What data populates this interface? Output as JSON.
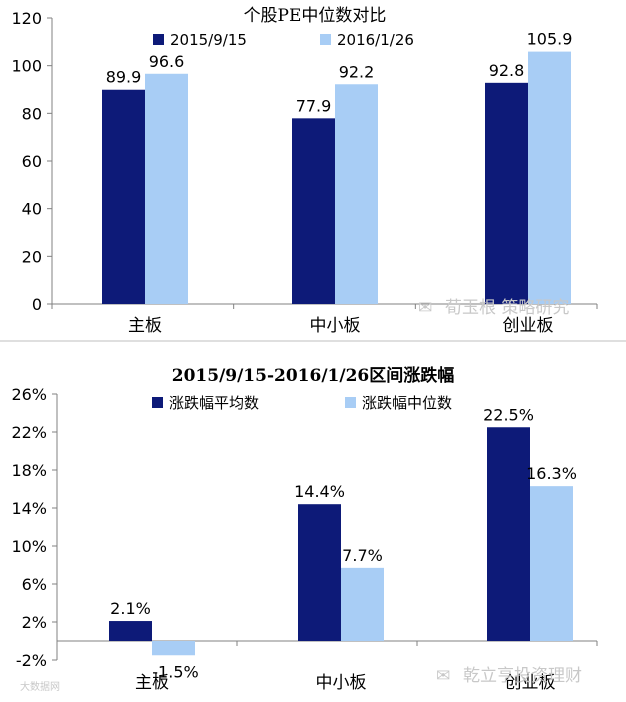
{
  "colors": {
    "series1": "#0d1a78",
    "series2": "#a8cdf5",
    "axis": "#808080",
    "divider": "#bfbfbf"
  },
  "watermarks": {
    "top": "荀玉根 策略研究",
    "bottom": "乾立亨投资理财",
    "corner": "大数据网"
  },
  "chart_data": [
    {
      "type": "bar",
      "title": "个股PE中位数对比",
      "categories": [
        "主板",
        "中小板",
        "创业板"
      ],
      "series": [
        {
          "name": "2015/9/15",
          "values": [
            89.9,
            77.9,
            92.8
          ],
          "labels": [
            "89.9",
            "77.9",
            "92.8"
          ]
        },
        {
          "name": "2016/1/26",
          "values": [
            96.6,
            92.2,
            105.9
          ],
          "labels": [
            "96.6",
            "92.2",
            "105.9"
          ]
        }
      ],
      "ylim": [
        0,
        120
      ],
      "yticks": [
        0,
        20,
        40,
        60,
        80,
        100,
        120
      ],
      "ytick_labels": [
        "0",
        "20",
        "40",
        "60",
        "80",
        "100",
        "120"
      ],
      "legend": "top"
    },
    {
      "type": "bar",
      "title": "2015/9/15-2016/1/26区间涨跌幅",
      "categories": [
        "主板",
        "中小板",
        "创业板"
      ],
      "series": [
        {
          "name": "涨跌幅平均数",
          "values": [
            2.1,
            14.4,
            22.5
          ],
          "labels": [
            "2.1%",
            "14.4%",
            "22.5%"
          ]
        },
        {
          "name": "涨跌幅中位数",
          "values": [
            -1.5,
            7.7,
            16.3
          ],
          "labels": [
            "-1.5%",
            "7.7%",
            "16.3%"
          ]
        }
      ],
      "ylim": [
        -2,
        26
      ],
      "yticks": [
        -2,
        2,
        6,
        10,
        14,
        18,
        22,
        26
      ],
      "ytick_labels": [
        "-2%",
        "2%",
        "6%",
        "10%",
        "14%",
        "18%",
        "22%",
        "26%"
      ],
      "legend": "top"
    }
  ]
}
